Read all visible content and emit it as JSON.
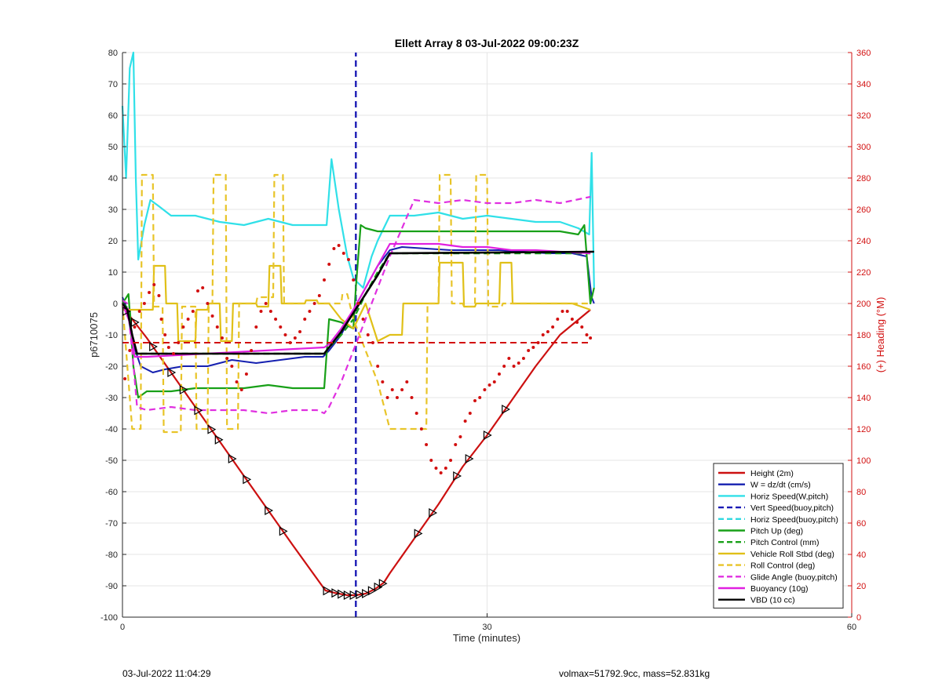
{
  "chart_data": {
    "type": "line",
    "title": "Ellett Array 8 03-Jul-2022 09:00:23Z",
    "xlabel": "Time (minutes)",
    "ylabel": "p6710075",
    "y2label": "(+) Heading (°M)",
    "xlim": [
      0,
      60
    ],
    "ylim": [
      -100,
      80
    ],
    "y2lim": [
      0,
      360
    ],
    "xticks": [
      "0",
      "30",
      "60"
    ],
    "xticks_values": [
      0,
      30,
      60
    ],
    "yticks": [
      "80",
      "70",
      "60",
      "50",
      "40",
      "30",
      "20",
      "10",
      "0",
      "-10",
      "-20",
      "-30",
      "-40",
      "-50",
      "-60",
      "-70",
      "-80",
      "-90",
      "-100"
    ],
    "yticks_values": [
      80,
      70,
      60,
      50,
      40,
      30,
      20,
      10,
      0,
      -10,
      -20,
      -30,
      -40,
      -50,
      -60,
      -70,
      -80,
      -90,
      -100
    ],
    "y2ticks": [
      "360",
      "340",
      "320",
      "300",
      "280",
      "260",
      "240",
      "220",
      "200",
      "180",
      "160",
      "140",
      "120",
      "100",
      "80",
      "60",
      "40",
      "20",
      "0"
    ],
    "y2ticks_values": [
      360,
      340,
      320,
      300,
      280,
      260,
      240,
      220,
      200,
      180,
      160,
      140,
      120,
      100,
      80,
      60,
      40,
      20,
      0
    ],
    "grid": true,
    "legend_position": "bottom-right",
    "vertical_line_x": 19.2,
    "series": [
      {
        "name": "Height (2m)",
        "color": "#cc1010",
        "style": "solid",
        "width": 2.2,
        "x": [
          0,
          2,
          4,
          6,
          8,
          10,
          12,
          14,
          16.7,
          17.5,
          18.5,
          19.2,
          20,
          20.8,
          21.5,
          22,
          24,
          26,
          28,
          30,
          32,
          34,
          36,
          38.5
        ],
        "y": [
          -1,
          -11,
          -22,
          -33,
          -44,
          -55,
          -66,
          -77,
          -91.5,
          -92.3,
          -93,
          -93,
          -92.5,
          -91,
          -89,
          -86,
          -75,
          -64,
          -52,
          -42,
          -31,
          -20,
          -10,
          -2
        ]
      },
      {
        "name": "W = dz/dt (cm/s)",
        "color": "#1520b0",
        "style": "solid",
        "width": 2,
        "x": [
          0,
          0.4,
          0.8,
          1.5,
          2.5,
          3.5,
          5,
          7,
          9,
          11,
          13,
          15,
          16.5,
          17,
          18,
          19,
          20,
          21,
          22,
          23,
          25,
          27,
          29,
          31,
          33,
          35,
          37,
          38.2,
          38.6,
          38.8
        ],
        "y": [
          2,
          -2,
          -12,
          -20,
          -22,
          -21,
          -20,
          -20,
          -18,
          -19,
          -18,
          -17,
          -17,
          -15,
          -10,
          -2,
          5,
          12,
          17,
          18,
          17.5,
          17,
          17,
          17,
          16.5,
          16,
          16,
          15,
          2,
          0
        ]
      },
      {
        "name": "Horiz Speed(W,pitch)",
        "color": "#30e0e8",
        "style": "solid",
        "width": 2.2,
        "x": [
          0,
          0.3,
          0.6,
          0.9,
          1.1,
          1.3,
          1.8,
          2.3,
          3,
          4,
          6,
          8,
          10,
          12,
          14,
          16,
          16.8,
          17.2,
          17.8,
          18.5,
          19,
          19.8,
          20.5,
          21,
          22,
          24,
          26,
          28,
          30,
          32,
          34,
          36,
          37.5,
          38.4,
          38.6,
          38.8
        ],
        "y": [
          63,
          40,
          75,
          80,
          40,
          14,
          25,
          33,
          31,
          28,
          28,
          26,
          25,
          27,
          25,
          25,
          25,
          46,
          30,
          15,
          8,
          5,
          15,
          20,
          28,
          28,
          29,
          27,
          28,
          27,
          26,
          26,
          24,
          22,
          48,
          5
        ]
      },
      {
        "name": "Vert Speed(buoy,pitch)",
        "color": "#1a1ab5",
        "style": "dash",
        "width": 2.4,
        "x": [
          19.2,
          19.2
        ],
        "y": [
          -100,
          80
        ]
      },
      {
        "name": "Horiz Speed(buoy,pitch)",
        "color": "#30d8e0",
        "style": "dash",
        "width": 2,
        "x": [],
        "y": []
      },
      {
        "name": "Pitch Up (deg)",
        "color": "#18a018",
        "style": "solid",
        "width": 2.2,
        "x": [
          0,
          0.5,
          0.9,
          1.3,
          2,
          4,
          6,
          8,
          10,
          12,
          14,
          16,
          16.6,
          17,
          18,
          18.5,
          19,
          19.2,
          19.6,
          20,
          21,
          22,
          24,
          26,
          28,
          30,
          32,
          34,
          36,
          37.5,
          38,
          38.5,
          38.8
        ],
        "y": [
          0,
          3,
          -20,
          -30,
          -28,
          -28,
          -27,
          -27,
          -27,
          -26,
          -27,
          -27,
          -27,
          -5,
          -6,
          -7,
          -8,
          5,
          25,
          24,
          23,
          23,
          23,
          23,
          23,
          23,
          23,
          23,
          23,
          22,
          25,
          0,
          5
        ]
      },
      {
        "name": "Pitch Control (mm)",
        "color": "#18a018",
        "style": "dash",
        "width": 2.4,
        "x": [
          0,
          0.6,
          0.9,
          16.6,
          17,
          18,
          19,
          20,
          21,
          22,
          38.5
        ],
        "y": [
          0,
          -2,
          -16,
          -16,
          -14,
          -10,
          -5,
          3,
          10,
          16,
          16
        ]
      },
      {
        "name": "Vehicle Roll Stbd (deg)",
        "color": "#e0c018",
        "style": "solid",
        "width": 2.2,
        "x": [
          0,
          1.5,
          2.5,
          2.6,
          3.5,
          3.6,
          4.5,
          4.6,
          6,
          6.1,
          7,
          7.1,
          8,
          8.1,
          9,
          9.1,
          11,
          11.1,
          12,
          12.1,
          13,
          13.1,
          15,
          15.1,
          16,
          16.1,
          17,
          18,
          19,
          20,
          21,
          22,
          23,
          23.1,
          23.5,
          23.6,
          25,
          25.1,
          26,
          26.1,
          28,
          28.1,
          29,
          29.1,
          31,
          31.1,
          32,
          32.1,
          33,
          34,
          36,
          37,
          38.5
        ],
        "y": [
          -2,
          -2,
          -2,
          12,
          12,
          0,
          0,
          -12,
          -12,
          -2,
          -2,
          0,
          0,
          -12,
          -12,
          0,
          0,
          -1,
          -1,
          12,
          12,
          0,
          0,
          1,
          1,
          0,
          0,
          -5,
          -8,
          0,
          -12,
          -10,
          -10,
          0,
          0,
          0,
          0,
          0,
          0,
          13,
          13,
          -1,
          -1,
          0,
          0,
          13,
          13,
          0,
          0,
          0,
          0,
          0,
          -2
        ]
      },
      {
        "name": "Roll Control (deg)",
        "color": "#e8c428",
        "style": "dash",
        "width": 2.2,
        "x": [
          0,
          0.8,
          1.2,
          1.5,
          1.6,
          2.5,
          2.6,
          3.3,
          3.4,
          4.8,
          4.9,
          6,
          6.1,
          7,
          7.1,
          7.4,
          7.5,
          8.5,
          8.6,
          9.5,
          9.6,
          11,
          11.1,
          12.4,
          12.5,
          13.2,
          13.3,
          15,
          15.1,
          16,
          16.1,
          18,
          18.1,
          18.5,
          19,
          20,
          21,
          22,
          23,
          23.1,
          25,
          25.1,
          26,
          26.1,
          27,
          27.1,
          28,
          28.1,
          29,
          29.1,
          30,
          30.1,
          31.2,
          31.3,
          32,
          32.1,
          33,
          38.5
        ],
        "y": [
          0,
          -40,
          -40,
          -40,
          41,
          41,
          -1,
          -1,
          -41,
          -41,
          -1,
          -1,
          -40,
          -40,
          0,
          0,
          41,
          41,
          -40,
          -40,
          0,
          0,
          2,
          2,
          41,
          41,
          0,
          0,
          1,
          1,
          0,
          0,
          3,
          3,
          -5,
          -15,
          -25,
          -40,
          -40,
          -40,
          -40,
          0,
          0,
          41,
          41,
          0,
          0,
          -1,
          -1,
          41,
          41,
          -1,
          -1,
          0,
          0,
          0,
          0,
          0
        ]
      },
      {
        "name": "Glide Angle (buoy,pitch)",
        "color": "#e030e0",
        "style": "dash",
        "width": 2.2,
        "x": [
          0,
          0.4,
          0.8,
          1.2,
          2,
          4,
          6,
          8,
          10,
          12,
          14,
          16,
          16.6,
          17,
          18,
          19,
          20,
          21,
          22,
          24,
          26,
          28,
          30,
          32,
          34,
          36,
          38.5
        ],
        "y": [
          1,
          0,
          -15,
          -33,
          -34,
          -33,
          -34,
          -34,
          -34,
          -35,
          -34,
          -34,
          -35,
          -33,
          -25,
          -15,
          -5,
          5,
          15,
          33,
          32,
          33,
          32,
          32,
          33,
          32,
          34
        ]
      },
      {
        "name": "Buoyancy (10g)",
        "color": "#e020e0",
        "style": "solid",
        "width": 2.2,
        "x": [
          0,
          0.6,
          1,
          2,
          16.6,
          17,
          18,
          19,
          20,
          21,
          22,
          24,
          26,
          28,
          30,
          32,
          34,
          36,
          38.5
        ],
        "y": [
          0,
          -6,
          -17,
          -17,
          -14,
          -13,
          -8,
          -2,
          5,
          12,
          19,
          19,
          19,
          18,
          18,
          17,
          17,
          16.5,
          16
        ]
      },
      {
        "name": "VBD (10 cc)",
        "color": "#000000",
        "style": "solid",
        "width": 2.6,
        "x": [
          0,
          0.4,
          0.8,
          1.2,
          2,
          16.6,
          17,
          18,
          19,
          20,
          21,
          22,
          38.8
        ],
        "y": [
          0,
          -2,
          -10,
          -16,
          -16,
          -16,
          -14,
          -9,
          -3,
          3,
          9,
          16,
          16.5
        ]
      }
    ],
    "heading_points_note": "red dotted series plotted on right axis",
    "heading": {
      "color": "#d21010",
      "x": [
        0.2,
        0.6,
        1,
        1.4,
        1.8,
        2.2,
        2.6,
        3,
        3.2,
        3.5,
        3.8,
        4.2,
        4.6,
        5,
        5.4,
        5.8,
        6.2,
        6.6,
        7,
        7.4,
        7.8,
        8.2,
        8.6,
        9,
        9.4,
        9.8,
        10.2,
        10.6,
        11,
        11.4,
        11.8,
        12.2,
        12.6,
        13,
        13.4,
        13.8,
        14.2,
        14.6,
        15,
        15.4,
        15.8,
        16.2,
        16.6,
        17,
        17.4,
        17.8,
        18.2,
        18.6,
        19,
        19.4,
        19.8,
        20.2,
        20.6,
        21,
        21.4,
        21.8,
        22.2,
        22.6,
        23,
        23.4,
        23.8,
        24.2,
        24.6,
        25,
        25.4,
        25.8,
        26.2,
        26.6,
        27,
        27.4,
        27.8,
        28.2,
        28.6,
        29,
        29.4,
        29.8,
        30.2,
        30.6,
        31,
        31.4,
        31.8,
        32.2,
        32.6,
        33,
        33.4,
        33.8,
        34.2,
        34.6,
        35,
        35.4,
        35.8,
        36.2,
        36.6,
        37,
        37.4,
        37.8,
        38.2,
        38.5
      ],
      "y": [
        152,
        170,
        185,
        195,
        200,
        207,
        212,
        205,
        190,
        180,
        172,
        168,
        175,
        185,
        190,
        195,
        208,
        210,
        200,
        192,
        185,
        178,
        165,
        160,
        150,
        145,
        155,
        170,
        185,
        195,
        200,
        195,
        190,
        185,
        180,
        175,
        178,
        182,
        190,
        195,
        200,
        205,
        215,
        225,
        235,
        237,
        232,
        228,
        215,
        200,
        190,
        180,
        175,
        160,
        150,
        140,
        145,
        140,
        145,
        150,
        140,
        130,
        120,
        110,
        100,
        95,
        92,
        95,
        100,
        110,
        115,
        125,
        130,
        138,
        140,
        145,
        148,
        150,
        155,
        160,
        165,
        160,
        162,
        165,
        170,
        172,
        175,
        180,
        182,
        185,
        190,
        195,
        195,
        190,
        188,
        185,
        180,
        178
      ]
    },
    "legend": [
      "Height (2m)",
      "W = dz/dt (cm/s)",
      "Horiz Speed(W,pitch)",
      "Vert Speed(buoy,pitch)",
      "Horiz Speed(buoy,pitch)",
      "Pitch Up (deg)",
      "Pitch Control (mm)",
      "Vehicle Roll Stbd (deg)",
      "Roll Control (deg)",
      "Glide Angle (buoy,pitch)",
      "Buoyancy (10g)",
      "VBD (10 cc)"
    ]
  },
  "footer": {
    "left": "03-Jul-2022 11:04:29",
    "right": "volmax=51792.9cc, mass=52.831kg"
  }
}
